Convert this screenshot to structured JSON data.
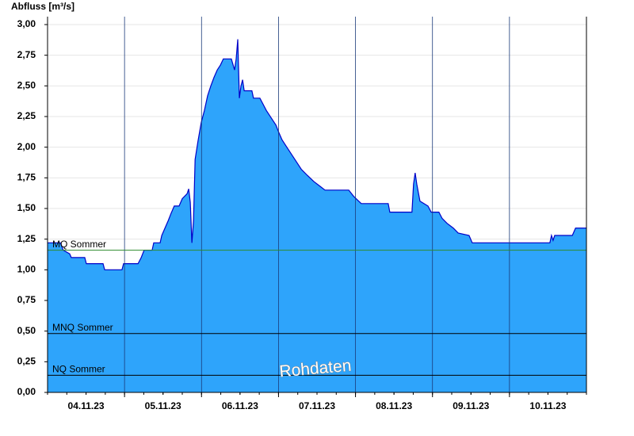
{
  "chart_data": {
    "type": "area",
    "y_axis_label": "Abfluss [m³/s]",
    "annotation": "Rohdaten",
    "color": "#2ea4fb",
    "line_color": "#0000c8",
    "grid": true,
    "xlim": [
      0,
      168
    ],
    "ylim": [
      0,
      3
    ],
    "xticks": [
      {
        "value": 12,
        "label": "04.11.23"
      },
      {
        "value": 36,
        "label": "05.11.23"
      },
      {
        "value": 60,
        "label": "06.11.23"
      },
      {
        "value": 84,
        "label": "07.11.23"
      },
      {
        "value": 108,
        "label": "08.11.23"
      },
      {
        "value": 132,
        "label": "09.11.23"
      },
      {
        "value": 156,
        "label": "10.11.23"
      }
    ],
    "xminorticks": [
      24,
      48,
      72,
      96,
      120,
      144
    ],
    "yticks": [
      {
        "value": 0,
        "label": "0,00"
      },
      {
        "value": 0.25,
        "label": "0,25"
      },
      {
        "value": 0.5,
        "label": "0,50"
      },
      {
        "value": 0.75,
        "label": "0,75"
      },
      {
        "value": 1,
        "label": "1,00"
      },
      {
        "value": 1.25,
        "label": "1,25"
      },
      {
        "value": 1.5,
        "label": "1,50"
      },
      {
        "value": 1.75,
        "label": "1,75"
      },
      {
        "value": 2,
        "label": "2,00"
      },
      {
        "value": 2.25,
        "label": "2,25"
      },
      {
        "value": 2.5,
        "label": "2,50"
      },
      {
        "value": 2.75,
        "label": "2,75"
      },
      {
        "value": 3,
        "label": "3,00"
      }
    ],
    "reference_lines": [
      {
        "name": "MQ Sommer",
        "value": 1.16,
        "color": "#2e8b2e"
      },
      {
        "name": "MNQ Sommer",
        "value": 0.48,
        "color": "#000000"
      },
      {
        "name": "NQ Sommer",
        "value": 0.14,
        "color": "#000000"
      }
    ],
    "x": [
      0,
      4.0,
      4.9,
      6.9,
      7.4,
      11.6,
      12.1,
      17.3,
      17.8,
      23.2,
      23.7,
      28.2,
      29.2,
      30.1,
      32.6,
      33.1,
      35.1,
      35.6,
      36.6,
      37.6,
      38.5,
      39.5,
      41.0,
      42.0,
      43.5,
      44.0,
      44.5,
      45.0,
      45.5,
      46.0,
      46.9,
      47.9,
      48.9,
      49.9,
      50.9,
      51.9,
      52.9,
      53.9,
      54.8,
      57.3,
      58.3,
      58.8,
      59.3,
      59.8,
      60.3,
      60.8,
      61.3,
      63.7,
      64.2,
      66.2,
      67.2,
      68.2,
      69.7,
      71.2,
      72.1,
      73.1,
      74.6,
      76.1,
      77.6,
      79.1,
      81.0,
      83.0,
      85.0,
      86.5,
      93.9,
      95.4,
      97.8,
      106.2,
      106.7,
      113.6,
      114.1,
      114.6,
      115.1,
      116.1,
      118.6,
      119.6,
      122.0,
      123.0,
      124.5,
      126.5,
      128.0,
      131.4,
      132.4,
      156.6,
      157.1,
      157.6,
      158.1,
      163.6,
      164.6,
      168
    ],
    "values": [
      1.22,
      1.22,
      1.16,
      1.13,
      1.1,
      1.1,
      1.05,
      1.05,
      1.0,
      1.0,
      1.05,
      1.05,
      1.1,
      1.16,
      1.16,
      1.22,
      1.22,
      1.28,
      1.34,
      1.4,
      1.46,
      1.52,
      1.52,
      1.58,
      1.62,
      1.66,
      1.55,
      1.22,
      1.4,
      1.9,
      2.05,
      2.2,
      2.3,
      2.42,
      2.5,
      2.57,
      2.63,
      2.67,
      2.72,
      2.72,
      2.63,
      2.72,
      2.88,
      2.4,
      2.5,
      2.55,
      2.46,
      2.46,
      2.4,
      2.4,
      2.35,
      2.3,
      2.24,
      2.18,
      2.12,
      2.06,
      2.0,
      1.94,
      1.88,
      1.82,
      1.77,
      1.72,
      1.68,
      1.65,
      1.65,
      1.6,
      1.54,
      1.54,
      1.47,
      1.47,
      1.7,
      1.79,
      1.7,
      1.56,
      1.52,
      1.47,
      1.47,
      1.42,
      1.38,
      1.34,
      1.3,
      1.28,
      1.22,
      1.22,
      1.28,
      1.24,
      1.28,
      1.28,
      1.34,
      1.34
    ]
  }
}
